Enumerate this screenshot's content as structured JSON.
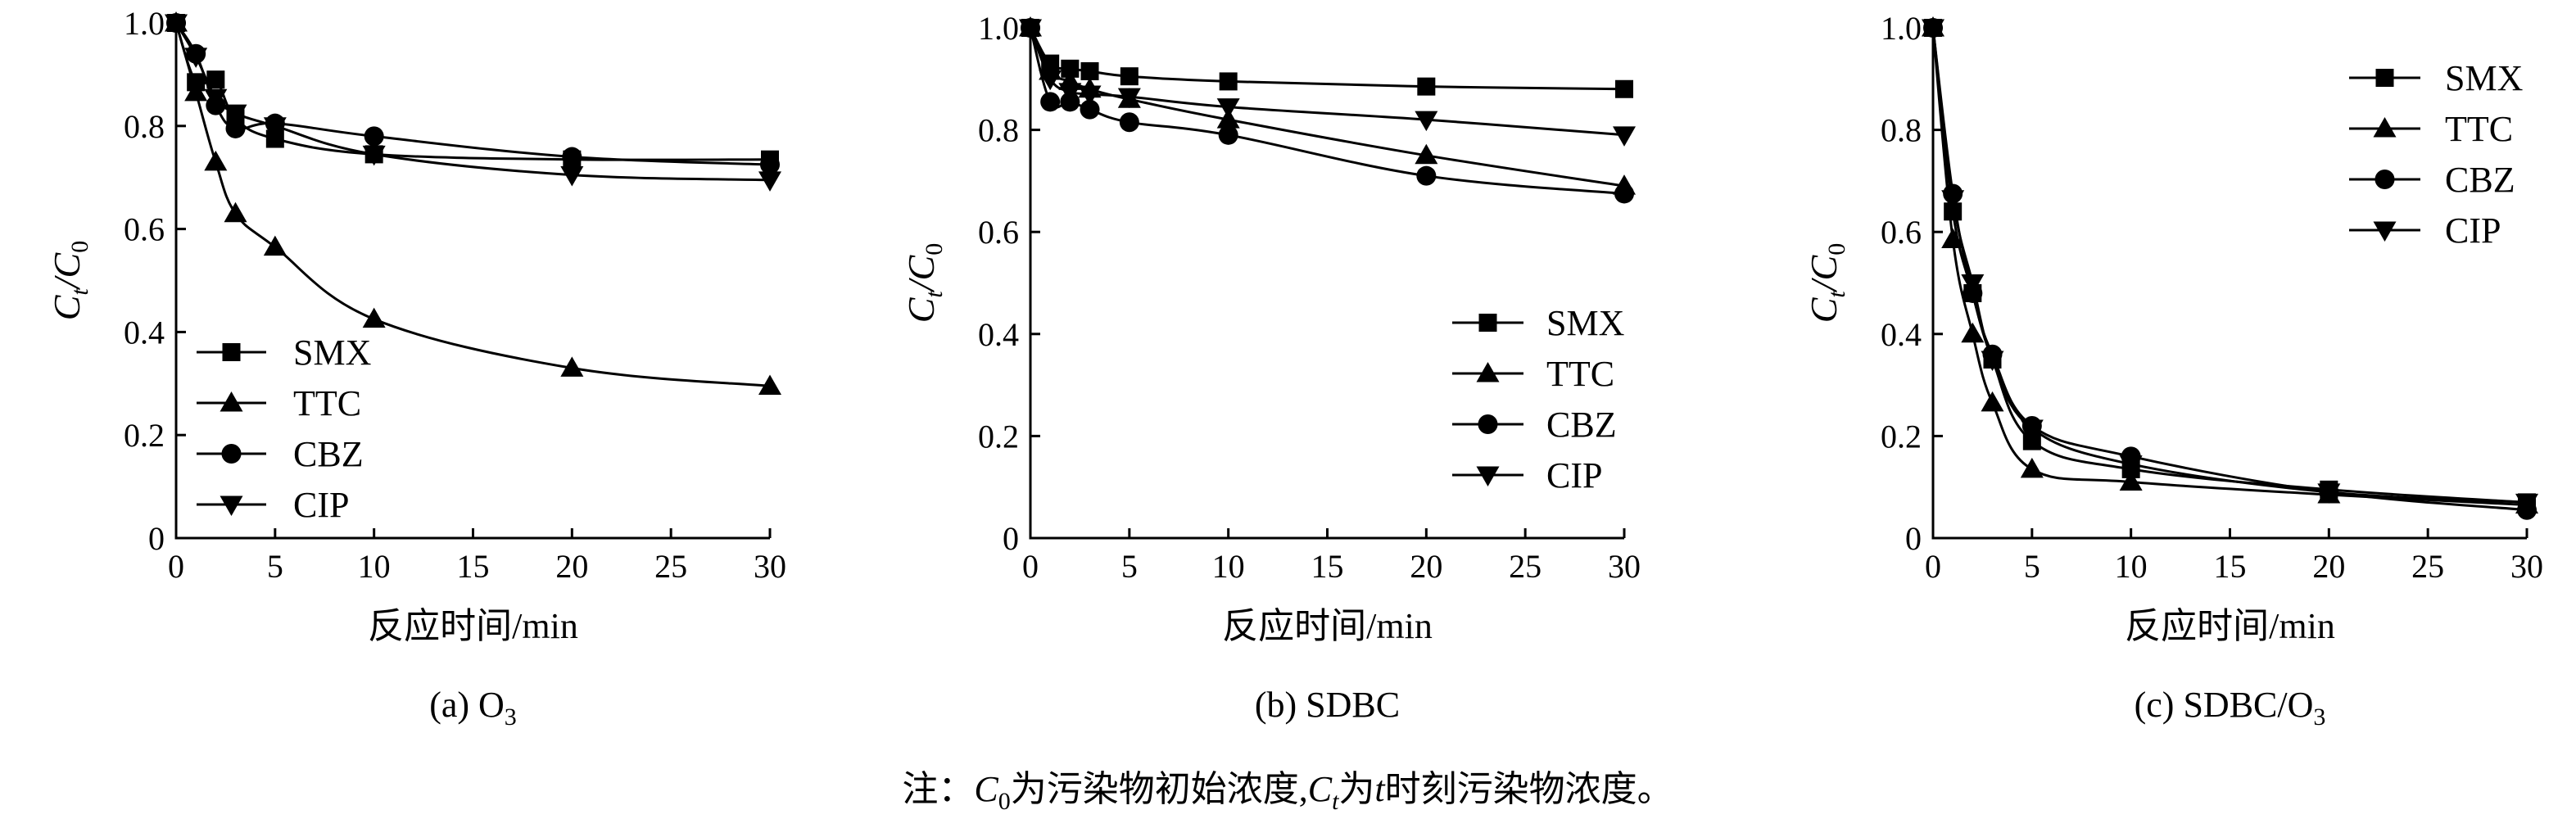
{
  "chart_data": [
    {
      "type": "line",
      "caption": "(a) O3",
      "caption_main": "(a) O",
      "caption_sub": "3",
      "ylabel_main": "C",
      "ylabel_sub_t": "t",
      "ylabel_sep": "/C",
      "ylabel_sub_0": "0",
      "xlabel": "反应时间/min",
      "xlim": [
        0,
        30
      ],
      "ylim": [
        0,
        1.0
      ],
      "xticks": [
        0,
        5,
        10,
        15,
        20,
        25,
        30
      ],
      "yticks": [
        0,
        0.2,
        0.4,
        0.6,
        0.8,
        1.0
      ],
      "ytick_labels": [
        "0",
        "0.2",
        "0.4",
        "0.6",
        "0.8",
        "1.0"
      ],
      "legend_position": "bottom-left",
      "series": [
        {
          "name": "SMX",
          "marker": "square",
          "x": [
            0,
            1,
            2,
            3,
            5,
            10,
            20,
            30
          ],
          "y": [
            1.0,
            0.885,
            0.89,
            0.815,
            0.775,
            0.745,
            0.735,
            0.735
          ]
        },
        {
          "name": "TTC",
          "marker": "triangle-up",
          "x": [
            0,
            1,
            2,
            3,
            5,
            10,
            20,
            30
          ],
          "y": [
            1.0,
            0.865,
            0.73,
            0.63,
            0.565,
            0.425,
            0.33,
            0.295
          ]
        },
        {
          "name": "CBZ",
          "marker": "circle",
          "x": [
            0,
            1,
            2,
            3,
            5,
            10,
            20,
            30
          ],
          "y": [
            1.0,
            0.94,
            0.84,
            0.795,
            0.805,
            0.78,
            0.74,
            0.725
          ]
        },
        {
          "name": "CIP",
          "marker": "triangle-down",
          "x": [
            0,
            1,
            2,
            3,
            5,
            10,
            20,
            30
          ],
          "y": [
            1.0,
            0.935,
            0.855,
            0.825,
            0.8,
            0.745,
            0.705,
            0.695
          ]
        }
      ]
    },
    {
      "type": "line",
      "caption": "(b) SDBC",
      "caption_main": "(b) SDBC",
      "caption_sub": "",
      "ylabel_main": "C",
      "ylabel_sub_t": "t",
      "ylabel_sep": "/C",
      "ylabel_sub_0": "0",
      "xlabel": "反应时间/min",
      "xlim": [
        0,
        30
      ],
      "ylim": [
        0,
        1.0
      ],
      "xticks": [
        0,
        5,
        10,
        15,
        20,
        25,
        30
      ],
      "yticks": [
        0,
        0.2,
        0.4,
        0.6,
        0.8,
        1.0
      ],
      "ytick_labels": [
        "0",
        "0.2",
        "0.4",
        "0.6",
        "0.8",
        "1.0"
      ],
      "legend_position": "bottom-right",
      "series": [
        {
          "name": "SMX",
          "marker": "square",
          "x": [
            0,
            1,
            2,
            3,
            5,
            10,
            20,
            30
          ],
          "y": [
            1.0,
            0.93,
            0.92,
            0.915,
            0.905,
            0.895,
            0.885,
            0.88
          ]
        },
        {
          "name": "TTC",
          "marker": "triangle-up",
          "x": [
            0,
            1,
            2,
            3,
            5,
            10,
            20,
            30
          ],
          "y": [
            1.0,
            0.915,
            0.895,
            0.88,
            0.86,
            0.82,
            0.75,
            0.69
          ]
        },
        {
          "name": "CBZ",
          "marker": "circle",
          "x": [
            0,
            1,
            2,
            3,
            5,
            10,
            20,
            30
          ],
          "y": [
            1.0,
            0.855,
            0.855,
            0.84,
            0.815,
            0.79,
            0.71,
            0.675
          ]
        },
        {
          "name": "CIP",
          "marker": "triangle-down",
          "x": [
            0,
            1,
            2,
            3,
            5,
            10,
            20,
            30
          ],
          "y": [
            1.0,
            0.9,
            0.875,
            0.87,
            0.865,
            0.845,
            0.82,
            0.79
          ]
        }
      ]
    },
    {
      "type": "line",
      "caption": "(c) SDBC/O3",
      "caption_main": "(c) SDBC/O",
      "caption_sub": "3",
      "ylabel_main": "C",
      "ylabel_sub_t": "t",
      "ylabel_sep": "/C",
      "ylabel_sub_0": "0",
      "xlabel": "反应时间/min",
      "xlim": [
        0,
        30
      ],
      "ylim": [
        0,
        1.0
      ],
      "xticks": [
        0,
        5,
        10,
        15,
        20,
        25,
        30
      ],
      "yticks": [
        0,
        0.2,
        0.4,
        0.6,
        0.8,
        1.0
      ],
      "ytick_labels": [
        "0",
        "0.2",
        "0.4",
        "0.6",
        "0.8",
        "1.0"
      ],
      "legend_position": "top-right",
      "series": [
        {
          "name": "SMX",
          "marker": "square",
          "x": [
            0,
            1,
            2,
            3,
            5,
            10,
            20,
            30
          ],
          "y": [
            1.0,
            0.64,
            0.48,
            0.35,
            0.19,
            0.135,
            0.095,
            0.07
          ]
        },
        {
          "name": "TTC",
          "marker": "triangle-up",
          "x": [
            0,
            1,
            2,
            3,
            5,
            10,
            20,
            30
          ],
          "y": [
            1.0,
            0.585,
            0.4,
            0.265,
            0.135,
            0.11,
            0.085,
            0.065
          ]
        },
        {
          "name": "CBZ",
          "marker": "circle",
          "x": [
            0,
            1,
            2,
            3,
            5,
            10,
            20,
            30
          ],
          "y": [
            1.0,
            0.675,
            0.48,
            0.36,
            0.22,
            0.16,
            0.09,
            0.055
          ]
        },
        {
          "name": "CIP",
          "marker": "triangle-down",
          "x": [
            0,
            1,
            2,
            3,
            5,
            10,
            20,
            30
          ],
          "y": [
            1.0,
            0.665,
            0.5,
            0.35,
            0.215,
            0.145,
            0.09,
            0.07
          ]
        }
      ]
    }
  ],
  "note": {
    "p1": "注：",
    "c1": "C",
    "c1_sub": "0",
    "p2": "为污染物初始浓度,",
    "c2": "C",
    "c2_sub": "t",
    "p3": "为",
    "t": "t",
    "p4": "时刻污染物浓度。"
  }
}
